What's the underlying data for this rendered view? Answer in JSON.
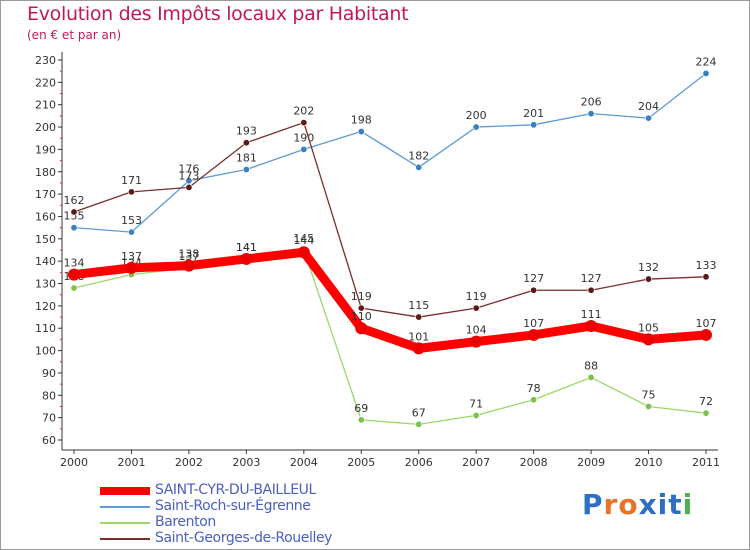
{
  "title": "Evolution des Impôts locaux par Habitant",
  "subtitle": "(en € et par an)",
  "brand": {
    "text": "Proxiti",
    "colors": [
      "#2e6fc4",
      "#e8742a",
      "#e8742a",
      "#2e6fc4",
      "#2e6fc4",
      "#2e6fc4",
      "#4caf50"
    ]
  },
  "chart_data": {
    "type": "line",
    "title": "Evolution des Impôts locaux par Habitant",
    "subtitle": "(en € et par an)",
    "x": [
      "2000",
      "2001",
      "2002",
      "2003",
      "2004",
      "2005",
      "2006",
      "2007",
      "2008",
      "2009",
      "2010",
      "2011"
    ],
    "ylim": [
      60,
      230
    ],
    "yticks": [
      60,
      70,
      80,
      90,
      100,
      110,
      120,
      130,
      140,
      150,
      160,
      170,
      180,
      190,
      200,
      210,
      220,
      230
    ],
    "grid": false,
    "legend_position": "bottom-left",
    "series": [
      {
        "name": "Saint-Roch-sur-Égrenne",
        "color": "#5b9bd5",
        "marker": "#3a7fc1",
        "values": [
          155,
          153,
          176,
          181,
          190,
          198,
          182,
          200,
          201,
          206,
          204,
          224
        ]
      },
      {
        "name": "Saint-Georges-de-Rouelley",
        "color": "#7b2d2d",
        "marker": "#5a1a1a",
        "values": [
          162,
          171,
          173,
          193,
          202,
          119,
          115,
          119,
          127,
          127,
          132,
          133
        ]
      },
      {
        "name": "Barenton",
        "color": "#9ed66b",
        "marker": "#7cc24a",
        "values": [
          128,
          134,
          137,
          141,
          145,
          69,
          67,
          71,
          78,
          88,
          75,
          72
        ]
      },
      {
        "name": "SAINT-CYR-DU-BAILLEUL",
        "color": "#ff0000",
        "marker": "#ee0000",
        "values": [
          134,
          137,
          138,
          141,
          144,
          110,
          101,
          104,
          107,
          111,
          105,
          107
        ]
      }
    ],
    "legend_order": [
      "SAINT-CYR-DU-BAILLEUL",
      "Saint-Roch-sur-Égrenne",
      "Barenton",
      "Saint-Georges-de-Rouelley"
    ]
  }
}
